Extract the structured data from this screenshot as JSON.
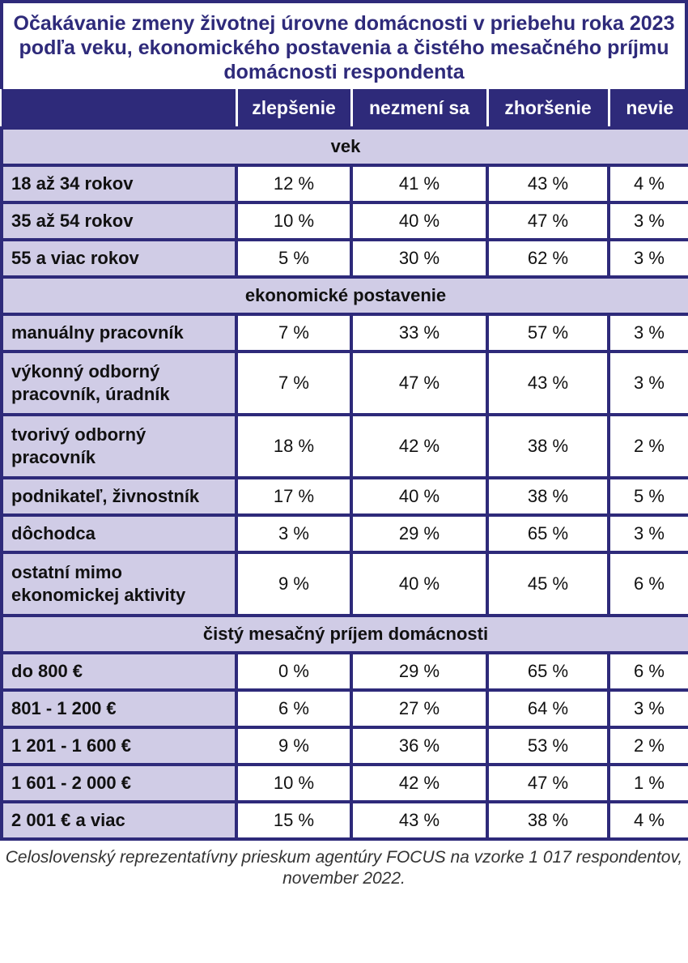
{
  "title": "Očakávanie zmeny životnej úrovne domácnosti v priebehu roka 2023 podľa veku, ekonomického postavenia a čistého mesačného príjmu domácnosti respondenta",
  "columns": [
    "zlepšenie",
    "nezmení sa",
    "zhoršenie",
    "nevie"
  ],
  "sections": [
    {
      "label": "vek",
      "rows": [
        {
          "label": "18 až 34 rokov",
          "values": [
            "12 %",
            "41 %",
            "43 %",
            "4 %"
          ]
        },
        {
          "label": "35 až 54 rokov",
          "values": [
            "10 %",
            "40 %",
            "47 %",
            "3 %"
          ]
        },
        {
          "label": "55  a viac rokov",
          "values": [
            "5 %",
            "30 %",
            "62 %",
            "3 %"
          ]
        }
      ]
    },
    {
      "label": "ekonomické postavenie",
      "rows": [
        {
          "label": "manuálny pracovník",
          "values": [
            "7 %",
            "33 %",
            "57 %",
            "3 %"
          ]
        },
        {
          "label": "výkonný odborný pracovník, úradník",
          "values": [
            "7 %",
            "47 %",
            "43 %",
            "3 %"
          ]
        },
        {
          "label": "tvorivý odborný pracovník",
          "values": [
            "18 %",
            "42 %",
            "38 %",
            "2 %"
          ]
        },
        {
          "label": "podnikateľ, živnostník",
          "values": [
            "17 %",
            "40 %",
            "38 %",
            "5 %"
          ]
        },
        {
          "label": "dôchodca",
          "values": [
            "3 %",
            "29 %",
            "65 %",
            "3 %"
          ]
        },
        {
          "label": "ostatní mimo ekonomickej aktivity",
          "values": [
            "9 %",
            "40 %",
            "45 %",
            "6 %"
          ]
        }
      ]
    },
    {
      "label": "čistý mesačný príjem domácnosti",
      "rows": [
        {
          "label": "do 800 €",
          "values": [
            "0 %",
            "29 %",
            "65 %",
            "6 %"
          ]
        },
        {
          "label": "801 - 1 200 €",
          "values": [
            "6 %",
            "27 %",
            "64 %",
            "3 %"
          ]
        },
        {
          "label": "1 201 - 1 600 €",
          "values": [
            "9 %",
            "36 %",
            "53 %",
            "2 %"
          ]
        },
        {
          "label": "1 601 - 2 000 €",
          "values": [
            "10 %",
            "42 %",
            "47 %",
            "1 %"
          ]
        },
        {
          "label": "2 001 € a viac",
          "values": [
            "15 %",
            "43 %",
            "38 %",
            "4 %"
          ]
        }
      ]
    }
  ],
  "footnote": "Celoslovenský reprezentatívny prieskum agentúry FOCUS na vzorke 1 017 respondentov, november 2022."
}
